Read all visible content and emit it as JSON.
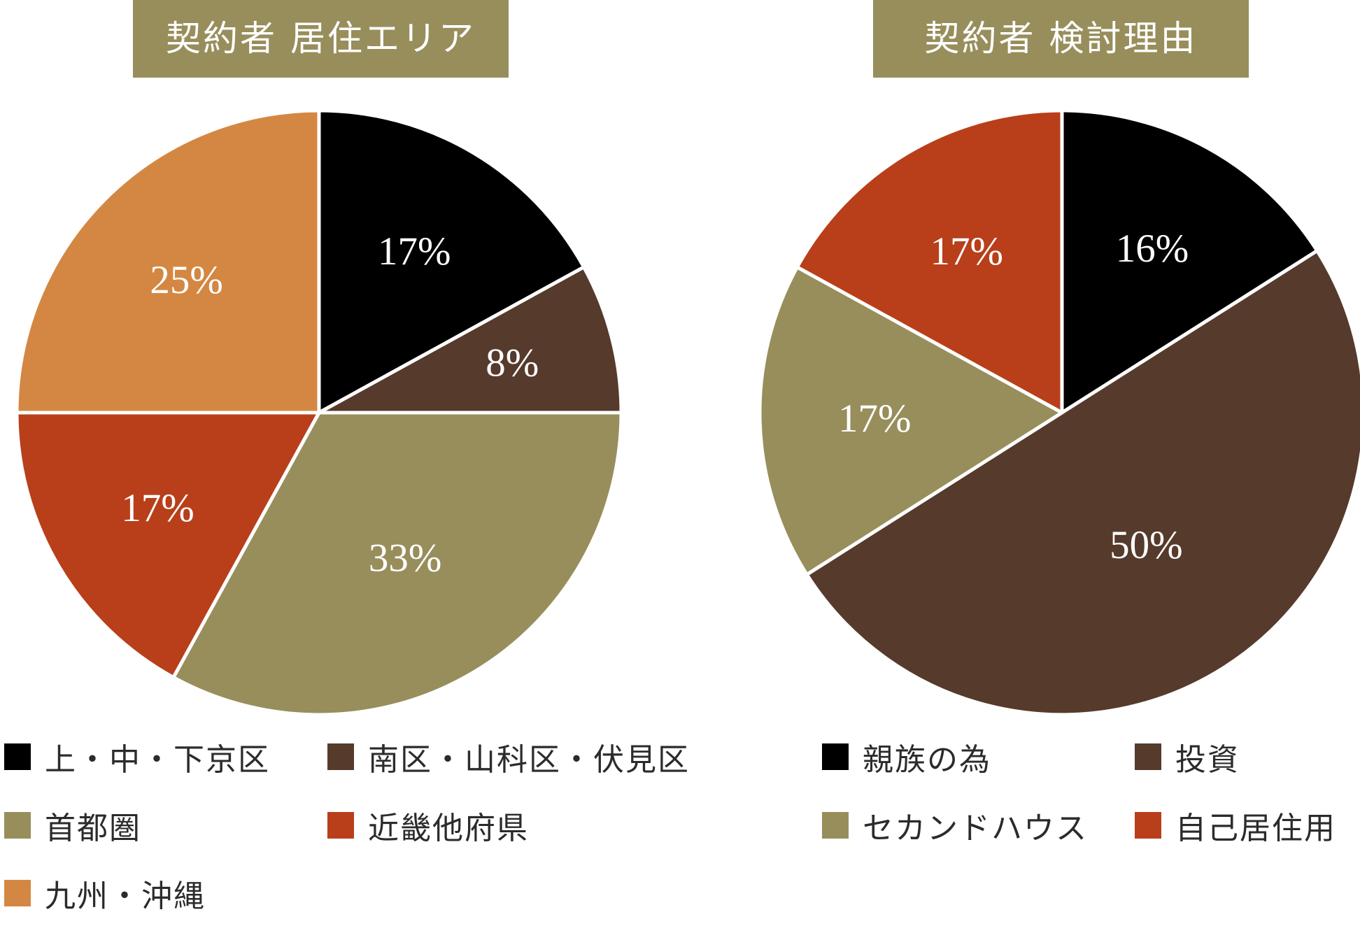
{
  "colors": {
    "black": "#000000",
    "brown": "#563a2c",
    "olive": "#988e5c",
    "red": "#b83f1a",
    "orange": "#d48742",
    "title_bg": "#988e5c"
  },
  "chart_data": [
    {
      "type": "pie",
      "title": "契約者 居住エリア",
      "slices": [
        {
          "label": "上・中・下京区",
          "value": 17,
          "display": "17%",
          "color": "#000000"
        },
        {
          "label": "南区・山科区・伏見区",
          "value": 8,
          "display": "8%",
          "color": "#563a2c"
        },
        {
          "label": "首都圏",
          "value": 33,
          "display": "33%",
          "color": "#988e5c"
        },
        {
          "label": "近畿他府県",
          "value": 17,
          "display": "17%",
          "color": "#b83f1a"
        },
        {
          "label": "九州・沖縄",
          "value": 25,
          "display": "25%",
          "color": "#d48742"
        }
      ],
      "legend": [
        {
          "label": "上・中・下京区",
          "color": "#000000"
        },
        {
          "label": "南区・山科区・伏見区",
          "color": "#563a2c"
        },
        {
          "label": "首都圏",
          "color": "#988e5c"
        },
        {
          "label": "近畿他府県",
          "color": "#b83f1a"
        },
        {
          "label": "九州・沖縄",
          "color": "#d48742"
        }
      ]
    },
    {
      "type": "pie",
      "title": "契約者 検討理由",
      "slices": [
        {
          "label": "親族の為",
          "value": 16,
          "display": "16%",
          "color": "#000000"
        },
        {
          "label": "投資",
          "value": 50,
          "display": "50%",
          "color": "#563a2c"
        },
        {
          "label": "セカンドハウス",
          "value": 17,
          "display": "17%",
          "color": "#988e5c"
        },
        {
          "label": "自己居住用",
          "value": 17,
          "display": "17%",
          "color": "#b83f1a"
        }
      ],
      "legend": [
        {
          "label": "親族の為",
          "color": "#000000"
        },
        {
          "label": "投資",
          "color": "#563a2c"
        },
        {
          "label": "セカンドハウス",
          "color": "#988e5c"
        },
        {
          "label": "自己居住用",
          "color": "#b83f1a"
        }
      ]
    }
  ]
}
